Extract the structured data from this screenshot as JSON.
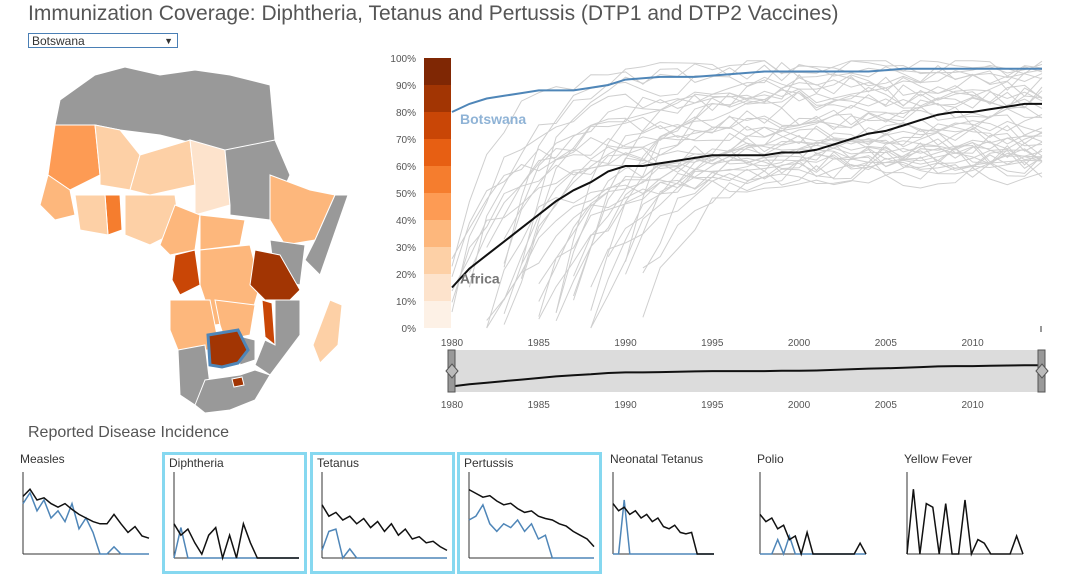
{
  "title": "Immunization Coverage: Diphtheria, Tetanus and Pertussis (DTP1 and DTP2 Vaccines)",
  "country_select": {
    "value": "Botswana"
  },
  "section_title": "Reported Disease Incidence",
  "colors": {
    "highlight": "#4f86b8",
    "africa": "#111111",
    "others": "#cfcfcf",
    "map_nodata": "#999999",
    "scale": [
      "#fdf1e6",
      "#fde3cc",
      "#fdd0a6",
      "#fdb77c",
      "#fd9b54",
      "#f57d2e",
      "#e75f13",
      "#c94606",
      "#a23503",
      "#7f2704"
    ],
    "mini_border": "#86d8f0"
  },
  "chart_data": {
    "type": "line",
    "title": "",
    "xlabel": "",
    "ylabel": "",
    "xlim": [
      1980,
      2014
    ],
    "ylim": [
      0,
      100
    ],
    "x_ticks": [
      1980,
      1985,
      1990,
      1995,
      2000,
      2005,
      2010
    ],
    "y_ticks": [
      "0%",
      "10%",
      "20%",
      "30%",
      "40%",
      "50%",
      "60%",
      "70%",
      "80%",
      "90%",
      "100%"
    ],
    "color_scale_levels": [
      10,
      20,
      30,
      40,
      50,
      60,
      70,
      80,
      90,
      100
    ],
    "series": [
      {
        "name": "Botswana",
        "highlight": true,
        "x": [
          1980,
          1981,
          1982,
          1983,
          1984,
          1985,
          1986,
          1987,
          1988,
          1989,
          1990,
          1992,
          1994,
          1996,
          1998,
          2000,
          2002,
          2004,
          2006,
          2008,
          2010,
          2012,
          2014
        ],
        "y": [
          80,
          83,
          85,
          86,
          87,
          88,
          88,
          88,
          89,
          90,
          92,
          93,
          93,
          94,
          95,
          95,
          95,
          95,
          96,
          96,
          96,
          96,
          96
        ]
      },
      {
        "name": "Africa",
        "highlight": true,
        "x": [
          1980,
          1981,
          1982,
          1983,
          1984,
          1985,
          1986,
          1987,
          1988,
          1989,
          1990,
          1991,
          1992,
          1993,
          1994,
          1995,
          1996,
          1997,
          1998,
          1999,
          2000,
          2001,
          2002,
          2003,
          2004,
          2005,
          2006,
          2007,
          2008,
          2009,
          2010,
          2011,
          2012,
          2013,
          2014
        ],
        "y": [
          15,
          22,
          27,
          32,
          37,
          42,
          47,
          51,
          54,
          58,
          60,
          60,
          61,
          62,
          63,
          64,
          64,
          64,
          64,
          65,
          65,
          66,
          68,
          70,
          72,
          73,
          75,
          77,
          79,
          80,
          80,
          81,
          82,
          83,
          83
        ]
      }
    ],
    "brush": {
      "range": [
        1980,
        2014
      ]
    }
  },
  "mini_charts": [
    {
      "label": "Measles",
      "selected": false,
      "black": [
        0.8,
        0.9,
        0.75,
        0.78,
        0.7,
        0.65,
        0.7,
        0.62,
        0.55,
        0.5,
        0.45,
        0.42,
        0.42,
        0.55,
        0.42,
        0.3,
        0.38,
        0.25,
        0.22
      ],
      "blue": [
        0.7,
        0.85,
        0.6,
        0.75,
        0.5,
        0.6,
        0.45,
        0.7,
        0.35,
        0.5,
        0.3,
        0.0,
        0.0,
        0.1,
        0.0,
        0.0,
        0.0,
        0.0,
        0.0
      ]
    },
    {
      "label": "Diphtheria",
      "selected": true,
      "black": [
        0.45,
        0.3,
        0.38,
        0.2,
        0.05,
        0.3,
        0.4,
        0.0,
        0.3,
        0.0,
        0.45,
        0.2,
        0.0,
        0.0,
        0.0,
        0.0,
        0.0,
        0.0,
        0.0
      ],
      "blue": [
        0.0,
        0.4,
        0.0,
        0.0,
        0.0,
        0.0,
        0.0,
        0.0,
        0.0,
        0.0,
        0.0,
        0.0,
        0.0,
        0.0,
        0.0,
        0.0,
        0.0,
        0.0,
        0.0
      ]
    },
    {
      "label": "Tetanus",
      "selected": true,
      "black": [
        0.7,
        0.55,
        0.6,
        0.5,
        0.55,
        0.45,
        0.52,
        0.4,
        0.48,
        0.35,
        0.45,
        0.3,
        0.38,
        0.25,
        0.28,
        0.2,
        0.22,
        0.15,
        0.1
      ],
      "blue": [
        0.1,
        0.35,
        0.38,
        0.0,
        0.12,
        0.0,
        0.0,
        0.0,
        0.0,
        0.0,
        0.0,
        0.0,
        0.0,
        0.0,
        0.0,
        0.0,
        0.0,
        0.0,
        0.0
      ]
    },
    {
      "label": "Pertussis",
      "selected": true,
      "black": [
        0.9,
        0.85,
        0.8,
        0.82,
        0.75,
        0.7,
        0.72,
        0.65,
        0.6,
        0.62,
        0.55,
        0.52,
        0.5,
        0.45,
        0.42,
        0.35,
        0.3,
        0.25,
        0.15
      ],
      "blue": [
        0.5,
        0.55,
        0.7,
        0.45,
        0.35,
        0.45,
        0.4,
        0.5,
        0.35,
        0.45,
        0.25,
        0.3,
        0.0,
        0.0,
        0.0,
        0.0,
        0.0,
        0.0,
        0.0
      ]
    },
    {
      "label": "Neonatal Tetanus",
      "selected": false,
      "black": [
        0.7,
        0.6,
        0.65,
        0.55,
        0.6,
        0.5,
        0.55,
        0.45,
        0.5,
        0.38,
        0.35,
        0.4,
        0.3,
        0.28,
        0.3,
        0.0,
        0.0,
        0.0,
        0.0
      ],
      "blue": [
        0.0,
        0.0,
        0.75,
        0.0,
        0.0,
        0.0,
        0.0,
        0.0,
        0.0,
        0.0,
        0.0,
        0.0,
        0.0,
        0.0,
        0.0,
        0.0,
        0.0,
        0.0,
        0.0
      ]
    },
    {
      "label": "Polio",
      "selected": false,
      "black": [
        0.55,
        0.45,
        0.5,
        0.35,
        0.4,
        0.2,
        0.25,
        0.0,
        0.3,
        0.0,
        0.0,
        0.0,
        0.0,
        0.0,
        0.0,
        0.0,
        0.0,
        0.15,
        0.0
      ],
      "blue": [
        0.0,
        0.0,
        0.0,
        0.2,
        0.0,
        0.25,
        0.0,
        0.0,
        0.0,
        0.0,
        0.0,
        0.0,
        0.0,
        0.0,
        0.0,
        0.0,
        0.0,
        0.0,
        0.0
      ]
    },
    {
      "label": "Yellow Fever",
      "selected": false,
      "black": [
        0.0,
        0.9,
        0.0,
        0.7,
        0.65,
        0.0,
        0.7,
        0.0,
        0.0,
        0.75,
        0.0,
        0.2,
        0.15,
        0.0,
        0.0,
        0.0,
        0.0,
        0.25,
        0.0
      ],
      "blue": []
    }
  ]
}
